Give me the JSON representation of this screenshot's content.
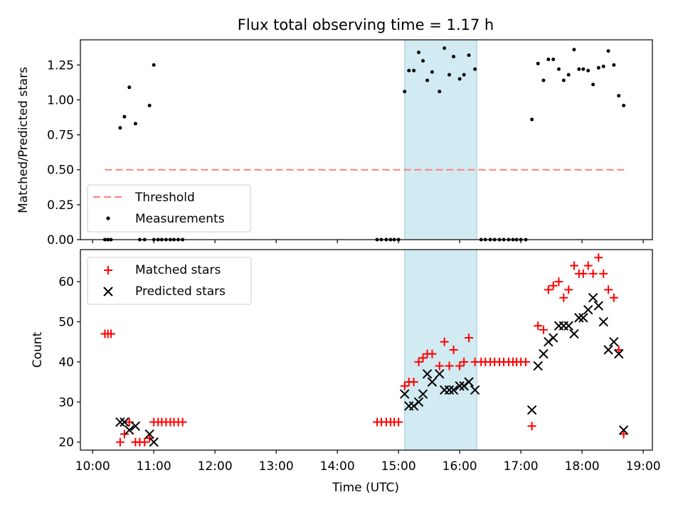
{
  "chart_data": [
    {
      "type": "scatter",
      "title": "Flux total observing time = 1.17 h",
      "xlabel": "",
      "ylabel": "Matched/Predicted stars",
      "xlim": [
        9.8,
        19.15
      ],
      "ylim": [
        0,
        1.43
      ],
      "yticks": [
        0,
        0.25,
        0.5,
        0.75,
        1.0,
        1.25
      ],
      "ytick_labels": [
        "0.00",
        "0.25",
        "0.50",
        "0.75",
        "1.00",
        "1.25"
      ],
      "highlight_span": [
        15.1,
        16.28
      ],
      "threshold": {
        "name": "Threshold",
        "y": 0.5,
        "x_start": 10.2,
        "x_end": 18.7,
        "color": "#ff7f7f"
      },
      "legend": {
        "position": "lower-left",
        "entries": [
          "Threshold",
          "Measurements"
        ]
      },
      "series": [
        {
          "name": "Measurements",
          "color": "#000000",
          "marker": "dot",
          "points": [
            [
              10.2,
              0
            ],
            [
              10.25,
              0
            ],
            [
              10.3,
              0
            ],
            [
              10.45,
              0.8
            ],
            [
              10.52,
              0.88
            ],
            [
              10.6,
              1.09
            ],
            [
              10.7,
              0.83
            ],
            [
              10.77,
              0
            ],
            [
              10.85,
              0
            ],
            [
              10.93,
              0.96
            ],
            [
              11.0,
              1.25
            ],
            [
              11.0,
              0
            ],
            [
              11.07,
              0
            ],
            [
              11.13,
              0
            ],
            [
              11.2,
              0
            ],
            [
              11.27,
              0
            ],
            [
              11.33,
              0
            ],
            [
              11.4,
              0
            ],
            [
              11.47,
              0
            ],
            [
              14.65,
              0
            ],
            [
              14.72,
              0
            ],
            [
              14.8,
              0
            ],
            [
              14.87,
              0
            ],
            [
              14.93,
              0
            ],
            [
              15.0,
              0
            ],
            [
              15.1,
              1.06
            ],
            [
              15.17,
              1.21
            ],
            [
              15.25,
              1.21
            ],
            [
              15.33,
              1.34
            ],
            [
              15.4,
              1.28
            ],
            [
              15.47,
              1.14
            ],
            [
              15.55,
              1.2
            ],
            [
              15.67,
              1.06
            ],
            [
              15.75,
              1.37
            ],
            [
              15.83,
              1.18
            ],
            [
              15.9,
              1.31
            ],
            [
              16.0,
              1.15
            ],
            [
              16.07,
              1.18
            ],
            [
              16.15,
              1.32
            ],
            [
              16.25,
              1.22
            ],
            [
              16.35,
              0
            ],
            [
              16.42,
              0
            ],
            [
              16.5,
              0
            ],
            [
              16.57,
              0
            ],
            [
              16.65,
              0
            ],
            [
              16.72,
              0
            ],
            [
              16.8,
              0
            ],
            [
              16.87,
              0
            ],
            [
              16.93,
              0
            ],
            [
              17.0,
              0
            ],
            [
              17.08,
              0
            ],
            [
              17.18,
              0.86
            ],
            [
              17.28,
              1.26
            ],
            [
              17.37,
              1.14
            ],
            [
              17.45,
              1.29
            ],
            [
              17.53,
              1.29
            ],
            [
              17.62,
              1.22
            ],
            [
              17.7,
              1.14
            ],
            [
              17.78,
              1.18
            ],
            [
              17.87,
              1.36
            ],
            [
              17.95,
              1.22
            ],
            [
              18.02,
              1.22
            ],
            [
              18.1,
              1.21
            ],
            [
              18.18,
              1.11
            ],
            [
              18.27,
              1.23
            ],
            [
              18.35,
              1.24
            ],
            [
              18.43,
              1.35
            ],
            [
              18.52,
              1.25
            ],
            [
              18.6,
              1.03
            ],
            [
              18.68,
              0.96
            ]
          ]
        }
      ]
    },
    {
      "type": "scatter",
      "title": "",
      "xlabel": "Time (UTC)",
      "ylabel": "Count",
      "xlim": [
        9.8,
        19.15
      ],
      "ylim": [
        18,
        68
      ],
      "yticks": [
        20,
        30,
        40,
        50,
        60
      ],
      "ytick_labels": [
        "20",
        "30",
        "40",
        "50",
        "60"
      ],
      "xticks": [
        10,
        11,
        12,
        13,
        14,
        15,
        16,
        17,
        18,
        19
      ],
      "xtick_labels": [
        "10:00",
        "11:00",
        "12:00",
        "13:00",
        "14:00",
        "15:00",
        "16:00",
        "17:00",
        "18:00",
        "19:00"
      ],
      "highlight_span": [
        15.1,
        16.28
      ],
      "legend": {
        "position": "top-left",
        "entries": [
          "Matched stars",
          "Predicted stars"
        ]
      },
      "series": [
        {
          "name": "Matched stars",
          "color": "#ff0000",
          "marker": "plus",
          "points": [
            [
              10.2,
              47
            ],
            [
              10.25,
              47
            ],
            [
              10.3,
              47
            ],
            [
              10.45,
              20
            ],
            [
              10.52,
              22
            ],
            [
              10.6,
              25
            ],
            [
              10.7,
              20
            ],
            [
              10.77,
              20
            ],
            [
              10.85,
              20
            ],
            [
              10.93,
              21
            ],
            [
              11.0,
              25
            ],
            [
              11.07,
              25
            ],
            [
              11.13,
              25
            ],
            [
              11.2,
              25
            ],
            [
              11.27,
              25
            ],
            [
              11.33,
              25
            ],
            [
              11.4,
              25
            ],
            [
              11.47,
              25
            ],
            [
              14.65,
              25
            ],
            [
              14.72,
              25
            ],
            [
              14.8,
              25
            ],
            [
              14.87,
              25
            ],
            [
              14.93,
              25
            ],
            [
              15.0,
              25
            ],
            [
              15.1,
              34
            ],
            [
              15.17,
              35
            ],
            [
              15.25,
              35
            ],
            [
              15.33,
              40
            ],
            [
              15.4,
              41
            ],
            [
              15.47,
              42
            ],
            [
              15.55,
              42
            ],
            [
              15.67,
              39
            ],
            [
              15.75,
              45
            ],
            [
              15.83,
              39
            ],
            [
              15.9,
              43
            ],
            [
              16.0,
              39
            ],
            [
              16.07,
              40
            ],
            [
              16.15,
              46
            ],
            [
              16.25,
              40
            ],
            [
              16.35,
              40
            ],
            [
              16.42,
              40
            ],
            [
              16.5,
              40
            ],
            [
              16.57,
              40
            ],
            [
              16.65,
              40
            ],
            [
              16.72,
              40
            ],
            [
              16.8,
              40
            ],
            [
              16.87,
              40
            ],
            [
              16.93,
              40
            ],
            [
              17.0,
              40
            ],
            [
              17.08,
              40
            ],
            [
              17.18,
              24
            ],
            [
              17.28,
              49
            ],
            [
              17.37,
              48
            ],
            [
              17.45,
              58
            ],
            [
              17.53,
              59
            ],
            [
              17.62,
              60
            ],
            [
              17.7,
              56
            ],
            [
              17.78,
              58
            ],
            [
              17.87,
              64
            ],
            [
              17.95,
              62
            ],
            [
              18.02,
              62
            ],
            [
              18.1,
              64
            ],
            [
              18.18,
              62
            ],
            [
              18.27,
              66
            ],
            [
              18.35,
              62
            ],
            [
              18.43,
              58
            ],
            [
              18.52,
              56
            ],
            [
              18.6,
              43
            ],
            [
              18.68,
              22
            ]
          ]
        },
        {
          "name": "Predicted stars",
          "color": "#000000",
          "marker": "x",
          "points": [
            [
              10.45,
              25
            ],
            [
              10.52,
              25
            ],
            [
              10.6,
              23
            ],
            [
              10.7,
              24
            ],
            [
              10.93,
              22
            ],
            [
              11.0,
              20
            ],
            [
              15.1,
              32
            ],
            [
              15.17,
              29
            ],
            [
              15.25,
              29
            ],
            [
              15.33,
              30
            ],
            [
              15.4,
              32
            ],
            [
              15.47,
              37
            ],
            [
              15.55,
              35
            ],
            [
              15.67,
              37
            ],
            [
              15.75,
              33
            ],
            [
              15.83,
              33
            ],
            [
              15.9,
              33
            ],
            [
              16.0,
              34
            ],
            [
              16.07,
              34
            ],
            [
              16.15,
              35
            ],
            [
              16.25,
              33
            ],
            [
              17.18,
              28
            ],
            [
              17.28,
              39
            ],
            [
              17.37,
              42
            ],
            [
              17.45,
              45
            ],
            [
              17.53,
              46
            ],
            [
              17.62,
              49
            ],
            [
              17.7,
              49
            ],
            [
              17.78,
              49
            ],
            [
              17.87,
              47
            ],
            [
              17.95,
              51
            ],
            [
              18.02,
              51
            ],
            [
              18.1,
              53
            ],
            [
              18.18,
              56
            ],
            [
              18.27,
              54
            ],
            [
              18.35,
              50
            ],
            [
              18.43,
              43
            ],
            [
              18.52,
              45
            ],
            [
              18.6,
              42
            ],
            [
              18.68,
              23
            ]
          ]
        }
      ]
    }
  ]
}
